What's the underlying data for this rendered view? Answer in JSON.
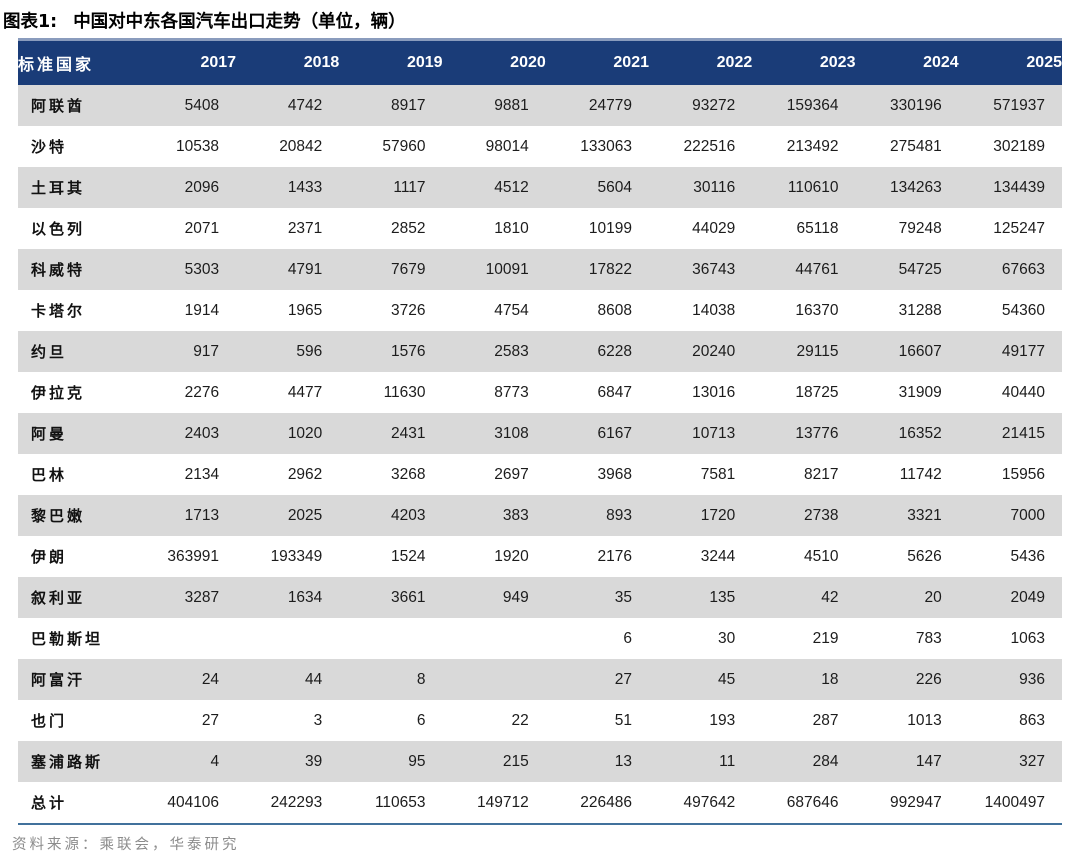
{
  "figure_title": {
    "label": "图表1:",
    "caption": "中国对中东各国汽车出口走势（单位，辆）"
  },
  "table": {
    "columns": [
      "标准国家",
      "2017",
      "2018",
      "2019",
      "2020",
      "2021",
      "2022",
      "2023",
      "2024",
      "2025"
    ],
    "rows": [
      {
        "country": "阿联酋",
        "values": [
          "5408",
          "4742",
          "8917",
          "9881",
          "24779",
          "93272",
          "159364",
          "330196",
          "571937"
        ]
      },
      {
        "country": "沙特",
        "values": [
          "10538",
          "20842",
          "57960",
          "98014",
          "133063",
          "222516",
          "213492",
          "275481",
          "302189"
        ]
      },
      {
        "country": "土耳其",
        "values": [
          "2096",
          "1433",
          "1117",
          "4512",
          "5604",
          "30116",
          "110610",
          "134263",
          "134439"
        ]
      },
      {
        "country": "以色列",
        "values": [
          "2071",
          "2371",
          "2852",
          "1810",
          "10199",
          "44029",
          "65118",
          "79248",
          "125247"
        ]
      },
      {
        "country": "科威特",
        "values": [
          "5303",
          "4791",
          "7679",
          "10091",
          "17822",
          "36743",
          "44761",
          "54725",
          "67663"
        ]
      },
      {
        "country": "卡塔尔",
        "values": [
          "1914",
          "1965",
          "3726",
          "4754",
          "8608",
          "14038",
          "16370",
          "31288",
          "54360"
        ]
      },
      {
        "country": "约旦",
        "values": [
          "917",
          "596",
          "1576",
          "2583",
          "6228",
          "20240",
          "29115",
          "16607",
          "49177"
        ]
      },
      {
        "country": "伊拉克",
        "values": [
          "2276",
          "4477",
          "11630",
          "8773",
          "6847",
          "13016",
          "18725",
          "31909",
          "40440"
        ]
      },
      {
        "country": "阿曼",
        "values": [
          "2403",
          "1020",
          "2431",
          "3108",
          "6167",
          "10713",
          "13776",
          "16352",
          "21415"
        ]
      },
      {
        "country": "巴林",
        "values": [
          "2134",
          "2962",
          "3268",
          "2697",
          "3968",
          "7581",
          "8217",
          "11742",
          "15956"
        ]
      },
      {
        "country": "黎巴嫩",
        "values": [
          "1713",
          "2025",
          "4203",
          "383",
          "893",
          "1720",
          "2738",
          "3321",
          "7000"
        ]
      },
      {
        "country": "伊朗",
        "values": [
          "363991",
          "193349",
          "1524",
          "1920",
          "2176",
          "3244",
          "4510",
          "5626",
          "5436"
        ]
      },
      {
        "country": "叙利亚",
        "values": [
          "3287",
          "1634",
          "3661",
          "949",
          "35",
          "135",
          "42",
          "20",
          "2049"
        ]
      },
      {
        "country": "巴勒斯坦",
        "values": [
          "",
          "",
          "",
          "",
          "6",
          "30",
          "219",
          "783",
          "1063"
        ]
      },
      {
        "country": "阿富汗",
        "values": [
          "24",
          "44",
          "8",
          "",
          "27",
          "45",
          "18",
          "226",
          "936"
        ]
      },
      {
        "country": "也门",
        "values": [
          "27",
          "3",
          "6",
          "22",
          "51",
          "193",
          "287",
          "1013",
          "863"
        ]
      },
      {
        "country": "塞浦路斯",
        "values": [
          "4",
          "39",
          "95",
          "215",
          "13",
          "11",
          "284",
          "147",
          "327"
        ]
      },
      {
        "country": "总计",
        "values": [
          "404106",
          "242293",
          "110653",
          "149712",
          "226486",
          "497642",
          "687646",
          "992947",
          "1400497"
        ],
        "total": true
      }
    ]
  },
  "source_note": "资料来源：乘联会，华泰研究",
  "colors": {
    "header_bg": "#1a3c78",
    "header_text": "#ffffff",
    "stripe": "#d9d9d9",
    "top_border": "#8a9cbd",
    "bottom_border": "#41719c",
    "source_text": "#8c8c8c"
  }
}
